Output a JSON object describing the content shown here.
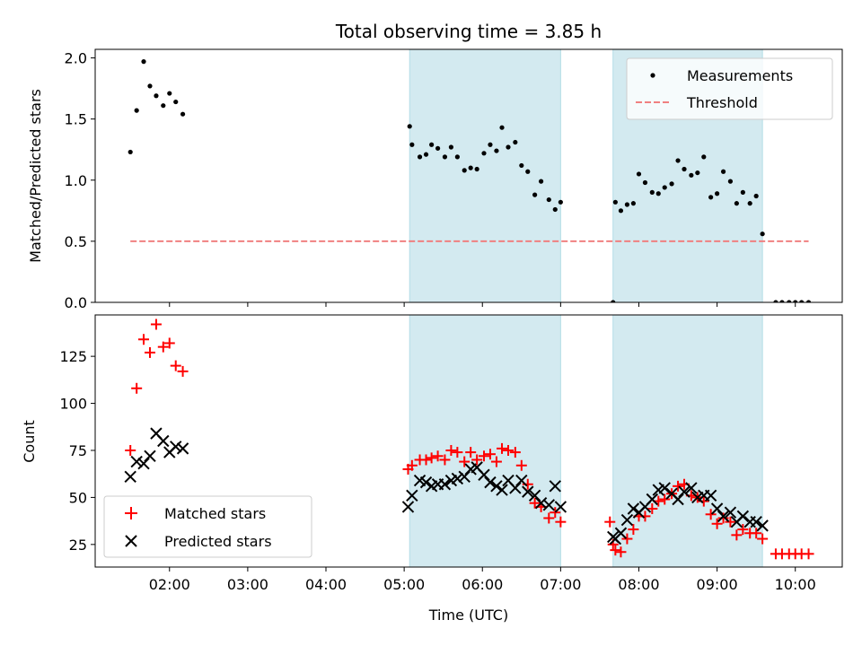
{
  "chart_data": [
    {
      "type": "scatter",
      "title": "Total observing time = 3.85 h",
      "ylabel": "Matched/Predicted stars",
      "xlabel": "",
      "xlim": [
        1.05,
        10.6
      ],
      "ylim": [
        0,
        2.07
      ],
      "x_ticks": [
        2,
        3,
        4,
        5,
        6,
        7,
        8,
        9,
        10
      ],
      "y_ticks": [
        0.0,
        0.5,
        1.0,
        1.5,
        2.0
      ],
      "y_tick_labels": [
        "0.0",
        "0.5",
        "1.0",
        "1.5",
        "2.0"
      ],
      "shaded_intervals": [
        [
          5.07,
          7.0
        ],
        [
          7.67,
          9.58
        ]
      ],
      "shade_color": "#d3eaf0",
      "legend_position": "top-right",
      "series": [
        {
          "name": "Measurements",
          "marker": "dot",
          "color": "#000000",
          "x": [
            1.5,
            1.58,
            1.67,
            1.75,
            1.83,
            1.92,
            2.0,
            2.08,
            2.17,
            5.07,
            5.1,
            5.2,
            5.28,
            5.35,
            5.43,
            5.52,
            5.6,
            5.68,
            5.77,
            5.85,
            5.93,
            6.02,
            6.1,
            6.18,
            6.25,
            6.33,
            6.42,
            6.5,
            6.58,
            6.67,
            6.75,
            6.85,
            6.93,
            7.0,
            7.67,
            7.7,
            7.77,
            7.85,
            7.93,
            8.0,
            8.08,
            8.17,
            8.25,
            8.33,
            8.42,
            8.5,
            8.58,
            8.67,
            8.75,
            8.83,
            8.92,
            9.0,
            9.08,
            9.17,
            9.25,
            9.33,
            9.42,
            9.5,
            9.58,
            9.75,
            9.83,
            9.92,
            10.0,
            10.08,
            10.17
          ],
          "y": [
            1.23,
            1.57,
            1.97,
            1.77,
            1.69,
            1.61,
            1.71,
            1.64,
            1.54,
            1.44,
            1.29,
            1.19,
            1.21,
            1.29,
            1.26,
            1.19,
            1.27,
            1.19,
            1.08,
            1.1,
            1.09,
            1.22,
            1.29,
            1.24,
            1.43,
            1.27,
            1.31,
            1.12,
            1.07,
            0.88,
            0.99,
            0.84,
            0.76,
            0.82,
            0.0,
            0.82,
            0.75,
            0.8,
            0.81,
            1.05,
            0.98,
            0.9,
            0.89,
            0.94,
            0.97,
            1.16,
            1.09,
            1.04,
            1.06,
            1.19,
            0.86,
            0.89,
            1.07,
            0.99,
            0.81,
            0.9,
            0.81,
            0.87,
            0.56,
            0.0,
            0.0,
            0.0,
            0.0,
            0.0,
            0.0
          ]
        },
        {
          "name": "Threshold",
          "marker": "dashed-line",
          "color": "#f08080",
          "x": [
            1.5,
            10.17
          ],
          "y": [
            0.5,
            0.5
          ]
        }
      ]
    },
    {
      "type": "scatter",
      "title": "",
      "ylabel": "Count",
      "xlabel": "Time (UTC)",
      "xlim": [
        1.05,
        10.6
      ],
      "ylim": [
        13,
        147
      ],
      "x_ticks": [
        2,
        3,
        4,
        5,
        6,
        7,
        8,
        9,
        10
      ],
      "x_tick_labels": [
        "02:00",
        "03:00",
        "04:00",
        "05:00",
        "06:00",
        "07:00",
        "08:00",
        "09:00",
        "10:00"
      ],
      "y_ticks": [
        25,
        50,
        75,
        100,
        125
      ],
      "y_tick_labels": [
        "25",
        "50",
        "75",
        "100",
        "125"
      ],
      "shaded_intervals": [
        [
          5.07,
          7.0
        ],
        [
          7.67,
          9.58
        ]
      ],
      "shade_color": "#d3eaf0",
      "legend_position": "bottom-left",
      "series": [
        {
          "name": "Matched stars",
          "marker": "plus",
          "color": "#ff0000",
          "x": [
            1.5,
            1.58,
            1.67,
            1.75,
            1.83,
            1.92,
            2.0,
            2.08,
            2.17,
            5.05,
            5.1,
            5.2,
            5.28,
            5.35,
            5.43,
            5.52,
            5.6,
            5.68,
            5.77,
            5.85,
            5.93,
            6.02,
            6.1,
            6.18,
            6.25,
            6.33,
            6.42,
            6.5,
            6.58,
            6.67,
            6.75,
            6.85,
            6.93,
            7.0,
            7.63,
            7.67,
            7.7,
            7.77,
            7.85,
            7.93,
            8.0,
            8.08,
            8.17,
            8.25,
            8.33,
            8.42,
            8.5,
            8.58,
            8.67,
            8.75,
            8.83,
            8.92,
            9.0,
            9.08,
            9.17,
            9.25,
            9.33,
            9.42,
            9.5,
            9.58,
            9.75,
            9.83,
            9.92,
            10.0,
            10.08,
            10.17
          ],
          "y": [
            75,
            108,
            134,
            127,
            142,
            130,
            132,
            120,
            117,
            65,
            67,
            70,
            70,
            71,
            72,
            70,
            75,
            74,
            69,
            74,
            70,
            72,
            73,
            69,
            76,
            75,
            74,
            67,
            57,
            47,
            45,
            39,
            42,
            37,
            37,
            25,
            22,
            21,
            28,
            33,
            40,
            40,
            44,
            48,
            49,
            52,
            56,
            57,
            51,
            50,
            48,
            41,
            36,
            39,
            37,
            30,
            33,
            31,
            31,
            28,
            20,
            20,
            20,
            20,
            20,
            20
          ]
        },
        {
          "name": "Predicted stars",
          "marker": "x",
          "color": "#000000",
          "x": [
            1.5,
            1.58,
            1.67,
            1.75,
            1.83,
            1.92,
            2.0,
            2.08,
            2.17,
            5.05,
            5.1,
            5.2,
            5.28,
            5.35,
            5.43,
            5.52,
            5.6,
            5.68,
            5.77,
            5.85,
            5.93,
            6.02,
            6.1,
            6.18,
            6.25,
            6.33,
            6.42,
            6.5,
            6.58,
            6.67,
            6.75,
            6.85,
            6.93,
            7.0,
            7.67,
            7.7,
            7.77,
            7.85,
            7.93,
            8.0,
            8.08,
            8.17,
            8.25,
            8.33,
            8.42,
            8.5,
            8.58,
            8.67,
            8.75,
            8.83,
            8.92,
            9.0,
            9.08,
            9.17,
            9.25,
            9.33,
            9.42,
            9.5,
            9.58
          ],
          "y": [
            61,
            69,
            68,
            72,
            84,
            80,
            74,
            77,
            76,
            45,
            51,
            59,
            58,
            56,
            57,
            57,
            59,
            60,
            61,
            65,
            66,
            62,
            58,
            56,
            54,
            59,
            55,
            59,
            53,
            51,
            47,
            46,
            56,
            45,
            29,
            28,
            31,
            38,
            44,
            42,
            45,
            49,
            54,
            55,
            52,
            49,
            53,
            55,
            50,
            51,
            51,
            44,
            40,
            42,
            37,
            40,
            37,
            37,
            35
          ]
        }
      ]
    }
  ]
}
